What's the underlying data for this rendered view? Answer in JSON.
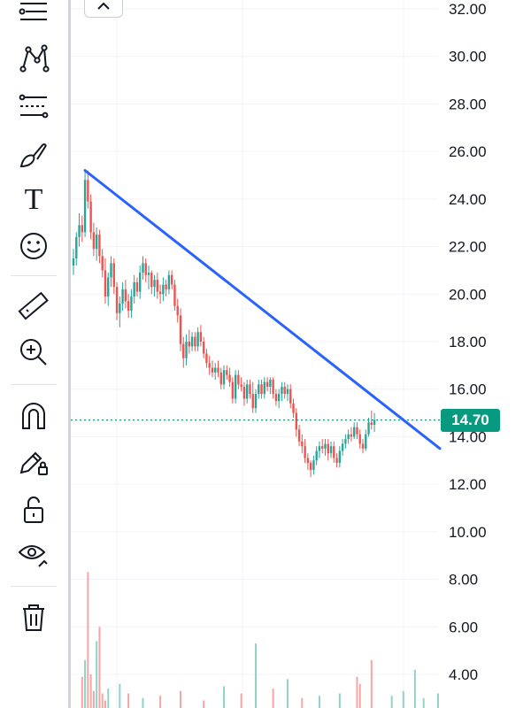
{
  "toolbar": {
    "tools": [
      {
        "icon": "horizontal-lines-icon",
        "name": "tool-lines"
      },
      {
        "icon": "pattern-icon",
        "name": "tool-patterns"
      },
      {
        "icon": "fib-levels-icon",
        "name": "tool-fibonacci"
      },
      {
        "icon": "brush-icon",
        "name": "tool-brush"
      },
      {
        "icon": "text-icon",
        "name": "tool-text",
        "glyph": "T"
      },
      {
        "icon": "smiley-icon",
        "name": "tool-emoji"
      },
      {
        "icon": "ruler-icon",
        "name": "tool-measure"
      },
      {
        "icon": "zoom-in-icon",
        "name": "tool-zoom"
      },
      {
        "icon": "magnet-icon",
        "name": "tool-magnet"
      },
      {
        "icon": "lock-drawing-icon",
        "name": "tool-lock-drawings"
      },
      {
        "icon": "unlock-icon",
        "name": "tool-lock-all"
      },
      {
        "icon": "eye-icon",
        "name": "tool-hide"
      },
      {
        "icon": "trash-icon",
        "name": "tool-remove"
      }
    ]
  },
  "collapse_button": {
    "icon": "chevron-up-icon"
  },
  "colors": {
    "up": "#26a69a",
    "down": "#ef5350",
    "up_volume": "#8fd3c9",
    "down_volume": "#f5a6a4",
    "trendline": "#2962ff",
    "last_price_line": "#089981",
    "grid": "#f0f3fa"
  },
  "chart_data": {
    "type": "candlestick",
    "y_axis": {
      "ticks": [
        "32.00",
        "30.00",
        "28.00",
        "26.00",
        "24.00",
        "22.00",
        "20.00",
        "18.00",
        "16.00",
        "14.00",
        "12.00",
        "10.00",
        "8.00",
        "6.00",
        "4.00"
      ],
      "range": [
        3.4,
        32.4
      ]
    },
    "last_price": "14.70",
    "trendline": {
      "start": {
        "bar": 4,
        "price": 25.2
      },
      "end": {
        "bar": 126,
        "price": 13.5
      }
    },
    "candles": [
      {
        "o": 21.2,
        "h": 21.9,
        "l": 20.8,
        "c": 21.5
      },
      {
        "o": 21.5,
        "h": 22.6,
        "l": 21.2,
        "c": 22.4
      },
      {
        "o": 22.4,
        "h": 23.4,
        "l": 22.0,
        "c": 22.9
      },
      {
        "o": 22.9,
        "h": 23.3,
        "l": 22.2,
        "c": 22.6
      },
      {
        "o": 22.6,
        "h": 25.2,
        "l": 22.4,
        "c": 24.8
      },
      {
        "o": 24.8,
        "h": 25.2,
        "l": 23.6,
        "c": 23.9
      },
      {
        "o": 23.9,
        "h": 24.2,
        "l": 22.3,
        "c": 22.6
      },
      {
        "o": 22.6,
        "h": 23.0,
        "l": 21.6,
        "c": 21.9
      },
      {
        "o": 21.9,
        "h": 22.8,
        "l": 21.4,
        "c": 22.5
      },
      {
        "o": 22.5,
        "h": 22.7,
        "l": 21.3,
        "c": 21.6
      },
      {
        "o": 21.6,
        "h": 21.9,
        "l": 20.7,
        "c": 21.0
      },
      {
        "o": 21.0,
        "h": 21.5,
        "l": 19.6,
        "c": 19.9
      },
      {
        "o": 19.9,
        "h": 20.9,
        "l": 19.5,
        "c": 20.7
      },
      {
        "o": 20.7,
        "h": 21.6,
        "l": 20.3,
        "c": 21.3
      },
      {
        "o": 21.3,
        "h": 21.5,
        "l": 20.0,
        "c": 20.3
      },
      {
        "o": 20.3,
        "h": 20.5,
        "l": 18.9,
        "c": 19.2
      },
      {
        "o": 19.2,
        "h": 19.9,
        "l": 18.6,
        "c": 19.6
      },
      {
        "o": 19.6,
        "h": 20.5,
        "l": 19.3,
        "c": 20.2
      },
      {
        "o": 20.2,
        "h": 20.6,
        "l": 19.4,
        "c": 19.7
      },
      {
        "o": 19.7,
        "h": 20.0,
        "l": 19.0,
        "c": 19.3
      },
      {
        "o": 19.3,
        "h": 20.2,
        "l": 19.0,
        "c": 19.9
      },
      {
        "o": 19.9,
        "h": 20.8,
        "l": 19.6,
        "c": 20.5
      },
      {
        "o": 20.5,
        "h": 20.7,
        "l": 19.9,
        "c": 20.1
      },
      {
        "o": 20.1,
        "h": 21.2,
        "l": 19.8,
        "c": 20.9
      },
      {
        "o": 20.9,
        "h": 21.6,
        "l": 20.6,
        "c": 21.3
      },
      {
        "o": 21.3,
        "h": 21.5,
        "l": 20.5,
        "c": 20.8
      },
      {
        "o": 20.8,
        "h": 21.2,
        "l": 20.2,
        "c": 20.9
      },
      {
        "o": 20.9,
        "h": 21.0,
        "l": 20.0,
        "c": 20.3
      },
      {
        "o": 20.3,
        "h": 20.8,
        "l": 19.9,
        "c": 20.6
      },
      {
        "o": 20.6,
        "h": 20.9,
        "l": 19.8,
        "c": 20.1
      },
      {
        "o": 20.1,
        "h": 20.4,
        "l": 19.6,
        "c": 20.0
      },
      {
        "o": 20.0,
        "h": 20.7,
        "l": 19.7,
        "c": 20.4
      },
      {
        "o": 20.4,
        "h": 20.6,
        "l": 19.9,
        "c": 20.2
      },
      {
        "o": 20.2,
        "h": 21.0,
        "l": 20.0,
        "c": 20.8
      },
      {
        "o": 20.8,
        "h": 21.0,
        "l": 20.2,
        "c": 20.4
      },
      {
        "o": 20.4,
        "h": 20.6,
        "l": 19.3,
        "c": 19.5
      },
      {
        "o": 19.5,
        "h": 19.8,
        "l": 18.8,
        "c": 19.1
      },
      {
        "o": 19.1,
        "h": 19.4,
        "l": 17.6,
        "c": 17.9
      },
      {
        "o": 17.9,
        "h": 18.2,
        "l": 16.9,
        "c": 17.3
      },
      {
        "o": 17.3,
        "h": 18.3,
        "l": 17.0,
        "c": 18.0
      },
      {
        "o": 18.0,
        "h": 18.5,
        "l": 17.5,
        "c": 17.8
      },
      {
        "o": 17.8,
        "h": 18.4,
        "l": 17.6,
        "c": 18.2
      },
      {
        "o": 18.2,
        "h": 18.4,
        "l": 17.6,
        "c": 17.8
      },
      {
        "o": 17.8,
        "h": 18.6,
        "l": 17.6,
        "c": 18.4
      },
      {
        "o": 18.4,
        "h": 18.7,
        "l": 17.8,
        "c": 18.0
      },
      {
        "o": 18.0,
        "h": 18.2,
        "l": 17.3,
        "c": 17.5
      },
      {
        "o": 17.5,
        "h": 17.7,
        "l": 16.9,
        "c": 17.1
      },
      {
        "o": 17.1,
        "h": 17.4,
        "l": 16.6,
        "c": 16.9
      },
      {
        "o": 16.9,
        "h": 17.2,
        "l": 16.5,
        "c": 16.7
      },
      {
        "o": 16.7,
        "h": 17.1,
        "l": 16.4,
        "c": 16.9
      },
      {
        "o": 16.9,
        "h": 17.2,
        "l": 16.5,
        "c": 16.7
      },
      {
        "o": 16.7,
        "h": 16.9,
        "l": 16.0,
        "c": 16.2
      },
      {
        "o": 16.2,
        "h": 17.0,
        "l": 16.0,
        "c": 16.8
      },
      {
        "o": 16.8,
        "h": 17.0,
        "l": 16.4,
        "c": 16.6
      },
      {
        "o": 16.6,
        "h": 16.9,
        "l": 16.1,
        "c": 16.3
      },
      {
        "o": 16.3,
        "h": 16.5,
        "l": 15.4,
        "c": 15.6
      },
      {
        "o": 15.6,
        "h": 16.8,
        "l": 15.4,
        "c": 16.6
      },
      {
        "o": 16.6,
        "h": 16.8,
        "l": 16.0,
        "c": 16.2
      },
      {
        "o": 16.2,
        "h": 16.5,
        "l": 15.9,
        "c": 16.1
      },
      {
        "o": 16.1,
        "h": 16.3,
        "l": 15.3,
        "c": 15.6
      },
      {
        "o": 15.6,
        "h": 16.4,
        "l": 15.4,
        "c": 16.2
      },
      {
        "o": 16.2,
        "h": 16.4,
        "l": 15.6,
        "c": 15.8
      },
      {
        "o": 15.8,
        "h": 16.3,
        "l": 15.0,
        "c": 15.2
      },
      {
        "o": 15.2,
        "h": 16.0,
        "l": 15.0,
        "c": 15.8
      },
      {
        "o": 15.8,
        "h": 16.4,
        "l": 15.6,
        "c": 16.2
      },
      {
        "o": 16.2,
        "h": 16.4,
        "l": 15.6,
        "c": 15.8
      },
      {
        "o": 15.8,
        "h": 16.5,
        "l": 15.6,
        "c": 16.3
      },
      {
        "o": 16.3,
        "h": 16.5,
        "l": 15.9,
        "c": 16.1
      },
      {
        "o": 16.1,
        "h": 16.5,
        "l": 15.8,
        "c": 16.4
      },
      {
        "o": 16.4,
        "h": 16.5,
        "l": 15.6,
        "c": 15.8
      },
      {
        "o": 15.8,
        "h": 16.0,
        "l": 15.3,
        "c": 15.5
      },
      {
        "o": 15.5,
        "h": 16.0,
        "l": 15.2,
        "c": 15.8
      },
      {
        "o": 15.8,
        "h": 16.3,
        "l": 15.5,
        "c": 16.1
      },
      {
        "o": 16.1,
        "h": 16.3,
        "l": 15.6,
        "c": 15.8
      },
      {
        "o": 15.8,
        "h": 16.2,
        "l": 15.5,
        "c": 16.0
      },
      {
        "o": 16.0,
        "h": 16.2,
        "l": 15.2,
        "c": 15.4
      },
      {
        "o": 15.4,
        "h": 15.6,
        "l": 14.8,
        "c": 15.0
      },
      {
        "o": 15.0,
        "h": 15.2,
        "l": 14.0,
        "c": 14.3
      },
      {
        "o": 14.3,
        "h": 14.5,
        "l": 13.6,
        "c": 13.8
      },
      {
        "o": 13.8,
        "h": 14.1,
        "l": 13.3,
        "c": 13.6
      },
      {
        "o": 13.6,
        "h": 13.9,
        "l": 12.9,
        "c": 13.1
      },
      {
        "o": 13.1,
        "h": 13.3,
        "l": 12.6,
        "c": 12.9
      },
      {
        "o": 12.9,
        "h": 13.0,
        "l": 12.3,
        "c": 12.6
      },
      {
        "o": 12.6,
        "h": 13.2,
        "l": 12.4,
        "c": 13.0
      },
      {
        "o": 13.0,
        "h": 13.6,
        "l": 12.8,
        "c": 13.4
      },
      {
        "o": 13.4,
        "h": 13.8,
        "l": 13.1,
        "c": 13.6
      },
      {
        "o": 13.6,
        "h": 13.9,
        "l": 13.3,
        "c": 13.5
      },
      {
        "o": 13.5,
        "h": 13.9,
        "l": 13.2,
        "c": 13.7
      },
      {
        "o": 13.7,
        "h": 13.9,
        "l": 13.0,
        "c": 13.3
      },
      {
        "o": 13.3,
        "h": 13.8,
        "l": 13.1,
        "c": 13.6
      },
      {
        "o": 13.6,
        "h": 13.8,
        "l": 12.9,
        "c": 13.1
      },
      {
        "o": 13.1,
        "h": 13.3,
        "l": 12.7,
        "c": 12.9
      },
      {
        "o": 12.9,
        "h": 13.6,
        "l": 12.7,
        "c": 13.4
      },
      {
        "o": 13.4,
        "h": 13.9,
        "l": 13.2,
        "c": 13.7
      },
      {
        "o": 13.7,
        "h": 14.1,
        "l": 13.5,
        "c": 13.9
      },
      {
        "o": 13.9,
        "h": 14.3,
        "l": 13.7,
        "c": 14.1
      },
      {
        "o": 14.1,
        "h": 14.4,
        "l": 13.8,
        "c": 14.0
      },
      {
        "o": 14.0,
        "h": 14.6,
        "l": 13.9,
        "c": 14.4
      },
      {
        "o": 14.4,
        "h": 14.6,
        "l": 13.9,
        "c": 14.1
      },
      {
        "o": 14.1,
        "h": 14.3,
        "l": 13.5,
        "c": 13.7
      },
      {
        "o": 13.7,
        "h": 13.9,
        "l": 13.3,
        "c": 13.5
      },
      {
        "o": 13.5,
        "h": 14.3,
        "l": 13.4,
        "c": 14.1
      },
      {
        "o": 14.1,
        "h": 14.8,
        "l": 14.0,
        "c": 14.6
      },
      {
        "o": 14.6,
        "h": 15.1,
        "l": 14.3,
        "c": 14.5
      },
      {
        "o": 14.5,
        "h": 15.0,
        "l": 14.2,
        "c": 14.7
      }
    ],
    "volumes": [
      {
        "bar": 3,
        "v": 3.9
      },
      {
        "bar": 4,
        "v": 4.6
      },
      {
        "bar": 5,
        "v": 8.3
      },
      {
        "bar": 6,
        "v": 4.0
      },
      {
        "bar": 7,
        "v": 3.3
      },
      {
        "bar": 8,
        "v": 5.4
      },
      {
        "bar": 9,
        "v": 6.0
      },
      {
        "bar": 10,
        "v": 3.2
      },
      {
        "bar": 11,
        "v": 2.9
      },
      {
        "bar": 12,
        "v": 3.4
      },
      {
        "bar": 16,
        "v": 3.6
      },
      {
        "bar": 19,
        "v": 3.2
      },
      {
        "bar": 24,
        "v": 3.0
      },
      {
        "bar": 30,
        "v": 3.1
      },
      {
        "bar": 37,
        "v": 3.3
      },
      {
        "bar": 45,
        "v": 2.9
      },
      {
        "bar": 52,
        "v": 3.5
      },
      {
        "bar": 58,
        "v": 3.2
      },
      {
        "bar": 63,
        "v": 5.3
      },
      {
        "bar": 69,
        "v": 3.4
      },
      {
        "bar": 74,
        "v": 3.8
      },
      {
        "bar": 79,
        "v": 3.0
      },
      {
        "bar": 85,
        "v": 3.1
      },
      {
        "bar": 92,
        "v": 3.2
      },
      {
        "bar": 98,
        "v": 3.9
      },
      {
        "bar": 99,
        "v": 3.6
      },
      {
        "bar": 103,
        "v": 4.6
      },
      {
        "bar": 110,
        "v": 3.1
      },
      {
        "bar": 114,
        "v": 3.3
      },
      {
        "bar": 118,
        "v": 4.2
      },
      {
        "bar": 121,
        "v": 3.0
      },
      {
        "bar": 126,
        "v": 3.2
      }
    ]
  }
}
